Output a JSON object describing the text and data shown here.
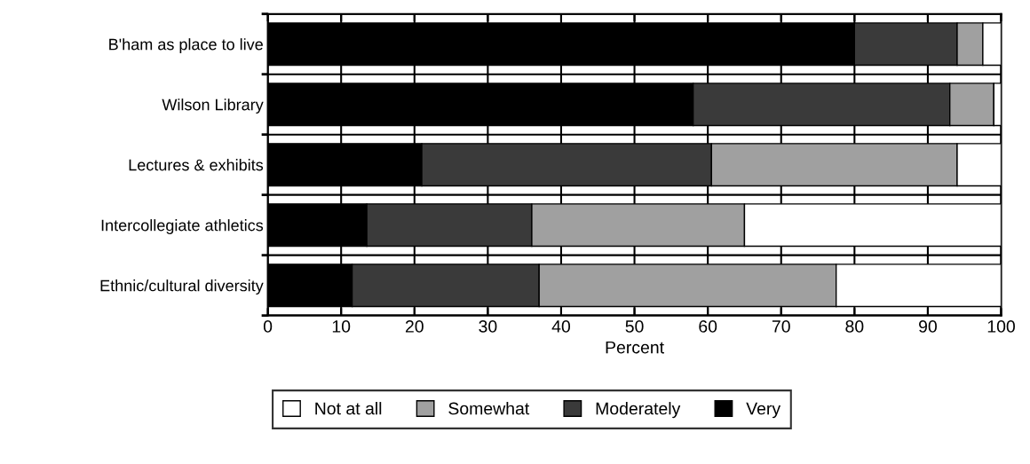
{
  "chart_data": {
    "type": "bar",
    "orientation": "horizontal",
    "stacked": true,
    "xlabel": "Percent",
    "categories": [
      "B'ham as place to live",
      "Wilson Library",
      "Lectures & exhibits",
      "Intercollegiate athletics",
      "Ethnic/cultural diversity"
    ],
    "series": [
      {
        "name": "Very",
        "color": "#000000",
        "values": [
          80,
          58,
          21,
          13.5,
          11.5
        ]
      },
      {
        "name": "Moderately",
        "color": "#3a3a3a",
        "values": [
          14,
          35,
          39.5,
          22.5,
          25.5
        ]
      },
      {
        "name": "Somewhat",
        "color": "#a0a0a0",
        "values": [
          3.5,
          6,
          33.5,
          29,
          40.5
        ]
      },
      {
        "name": "Not at all",
        "color": "#ffffff",
        "values": [
          2.5,
          1,
          6,
          35,
          22.5
        ]
      }
    ],
    "xlim": [
      0,
      100
    ],
    "xticks": [
      0,
      10,
      20,
      30,
      40,
      50,
      60,
      70,
      80,
      90,
      100
    ],
    "grid": true,
    "legend": "bottom"
  }
}
